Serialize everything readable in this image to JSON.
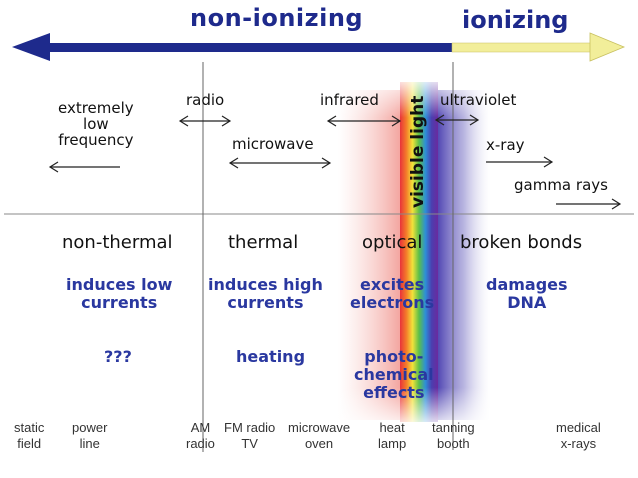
{
  "header": {
    "non_ionizing": "non-ionizing",
    "ionizing": "ionizing"
  },
  "bands": {
    "elf": "extremely\nlow\nfrequency",
    "radio": "radio",
    "microwave": "microwave",
    "infrared": "infrared",
    "visible": "visible light",
    "ultraviolet": "ultraviolet",
    "xray": "x-ray",
    "gamma": "gamma rays"
  },
  "categories": {
    "non_thermal": "non-thermal",
    "thermal": "thermal",
    "optical": "optical",
    "broken_bonds": "broken bonds"
  },
  "effects": {
    "low_currents": "induces low\ncurrents",
    "high_currents": "induces high\ncurrents",
    "excites": "excites\nelectrons",
    "damages": "damages\nDNA",
    "unknown": "???",
    "heating": "heating",
    "photochemical": "photo-\nchemical\neffects"
  },
  "sources": {
    "static": "static\nfield",
    "power": "power\nline",
    "am": "AM\nradio",
    "fm": "FM radio\nTV",
    "microwave_oven": "microwave\noven",
    "heat_lamp": "heat\nlamp",
    "tanning": "tanning\nbooth",
    "medical": "medical\nx-rays"
  },
  "colors": {
    "title_blue": "#1e2a8c",
    "arrow_blue": "#1e2a8c",
    "arrow_yellow": "#f2ee9a",
    "effect_blue": "#2a38a0"
  }
}
